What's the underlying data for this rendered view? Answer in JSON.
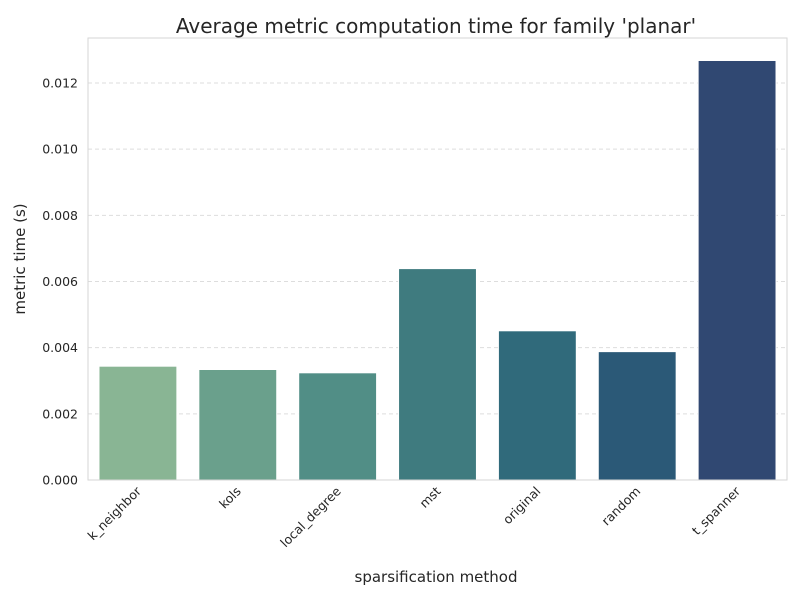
{
  "chart_data": {
    "type": "bar",
    "title": "Average metric computation time for family 'planar'",
    "xlabel": "sparsification method",
    "ylabel": "metric time (s)",
    "categories": [
      "k_neighbor",
      "kols",
      "local_degree",
      "mst",
      "original",
      "random",
      "t_spanner"
    ],
    "values": [
      0.00344,
      0.00334,
      0.00324,
      0.00639,
      0.00451,
      0.00388,
      0.01268
    ],
    "colors": [
      "#89b594",
      "#6aa08c",
      "#518e86",
      "#3f7b7f",
      "#306a7b",
      "#2b5977",
      "#304872"
    ],
    "ylim": [
      0,
      0.01336
    ],
    "yticks": [
      0,
      0.002,
      0.004,
      0.006,
      0.008,
      0.01,
      0.012
    ],
    "ytick_labels": [
      "0.000",
      "0.002",
      "0.004",
      "0.006",
      "0.008",
      "0.010",
      "0.012"
    ],
    "grid": true
  }
}
